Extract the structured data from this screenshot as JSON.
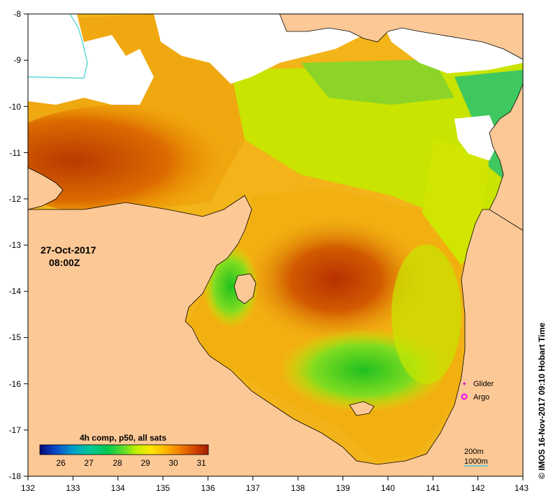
{
  "map": {
    "date": "27-Oct-2017",
    "time": "08:00Z",
    "credit": "© IMOS 16-Nov-2017 09:10 Hobart Time",
    "lon_ticks": [
      "132",
      "133",
      "134",
      "135",
      "136",
      "137",
      "138",
      "139",
      "140",
      "141",
      "142",
      "143"
    ],
    "lat_ticks": [
      "-8",
      "-9",
      "-10",
      "-11",
      "-12",
      "-13",
      "-14",
      "-15",
      "-16",
      "-17",
      "-18"
    ],
    "land_color": "#fcc896",
    "no_data_color": "#ffffff"
  },
  "colorbar": {
    "title": "4h comp, p50, all sats",
    "ticks": [
      "26",
      "27",
      "28",
      "29",
      "30",
      "31"
    ],
    "colors": [
      "#08087a",
      "#0a46c8",
      "#00a0c8",
      "#00c896",
      "#00c850",
      "#64dc28",
      "#c8f000",
      "#ffe600",
      "#ffb400",
      "#f07800",
      "#d24600",
      "#a01e00"
    ]
  },
  "legend": {
    "glider_label": "Glider",
    "argo_label": "Argo",
    "glider_color": "#cc33cc",
    "argo_color": "#ff00ff"
  },
  "contours": {
    "label_200": "200m",
    "label_1000": "1000m",
    "color": "#40d0d0"
  }
}
